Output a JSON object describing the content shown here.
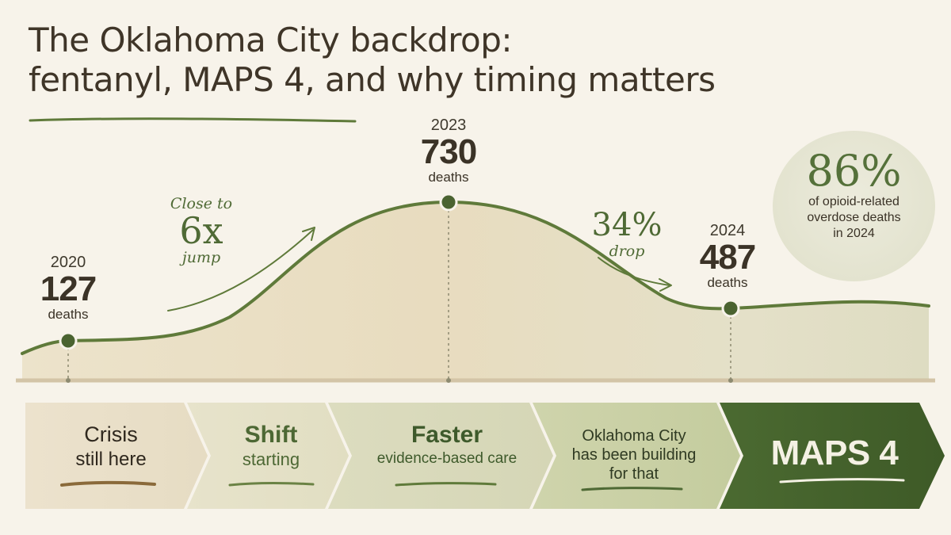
{
  "title": {
    "line1": "The Oklahoma City backdrop:",
    "line2": "fentanyl, MAPS 4, and why timing matters"
  },
  "chart_data": {
    "type": "area",
    "x": [
      2020,
      2023,
      2024
    ],
    "series": [
      {
        "values": [
          127,
          730,
          487
        ]
      }
    ],
    "points": [
      {
        "year": "2020",
        "value": "127",
        "unit": "deaths"
      },
      {
        "year": "2023",
        "value": "730",
        "unit": "deaths"
      },
      {
        "year": "2024",
        "value": "487",
        "unit": "deaths"
      }
    ],
    "annotations": {
      "rise": {
        "line1": "Close to",
        "big": "6x",
        "line2": "jump"
      },
      "drop": {
        "big": "34%",
        "line2": "drop"
      }
    }
  },
  "badge": {
    "percent": "86%",
    "line1": "of opioid-related",
    "line2": "overdose deaths",
    "line3": "in 2024"
  },
  "steps": [
    {
      "line1": "Crisis",
      "line2": "still here"
    },
    {
      "line1": "Shift",
      "line2": "starting"
    },
    {
      "line1": "Faster",
      "line2": "evidence-based care"
    },
    {
      "line1": "Oklahoma City",
      "line2": "has been building",
      "line3": "for that"
    },
    {
      "line1": "MAPS 4"
    }
  ],
  "colors": {
    "background": "#f7f3ea",
    "curve": "#5f7a3a",
    "accent_dark": "#4f6a35",
    "area_fill": "#e6dcc0"
  }
}
